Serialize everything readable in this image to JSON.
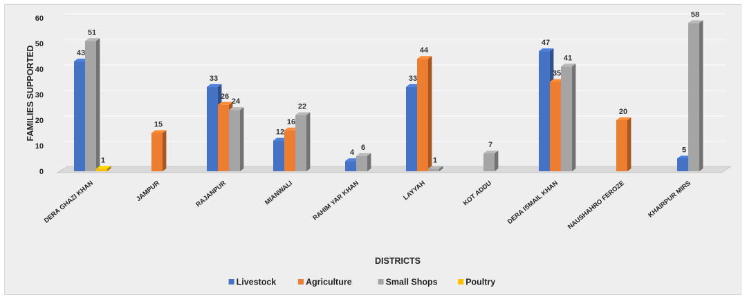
{
  "chart_data": {
    "type": "bar",
    "title": "",
    "xlabel": "DISTRICTS",
    "ylabel": "FAMILIES  SUPPORTED",
    "ylim": [
      0,
      60
    ],
    "yticks": [
      0,
      10,
      20,
      30,
      40,
      50,
      60
    ],
    "grid": true,
    "legend_position": "bottom",
    "categories": [
      "DERA GHAZI KHAN",
      "JAMPUR",
      "RAJANPUR",
      "MIANWALI",
      "RAHIM YAR KHAN",
      "LAYYAH",
      "KOT ADDU",
      "DERA ISMAIL KHAN",
      "NAUSHAHRO FEROZE",
      "KHAIRPUR MIRS"
    ],
    "series": [
      {
        "name": "Livestock",
        "color": "#4472C4",
        "values": [
          43,
          null,
          33,
          12,
          4,
          33,
          null,
          47,
          null,
          5
        ]
      },
      {
        "name": "Agriculture",
        "color": "#ED7D31",
        "values": [
          null,
          15,
          26,
          16,
          null,
          44,
          null,
          35,
          20,
          null
        ]
      },
      {
        "name": "Small Shops",
        "color": "#A5A5A5",
        "values": [
          51,
          null,
          24,
          22,
          6,
          1,
          7,
          41,
          null,
          58
        ]
      },
      {
        "name": "Poultry",
        "color": "#FFC000",
        "values": [
          1,
          null,
          null,
          null,
          null,
          null,
          null,
          null,
          null,
          null
        ]
      }
    ]
  }
}
